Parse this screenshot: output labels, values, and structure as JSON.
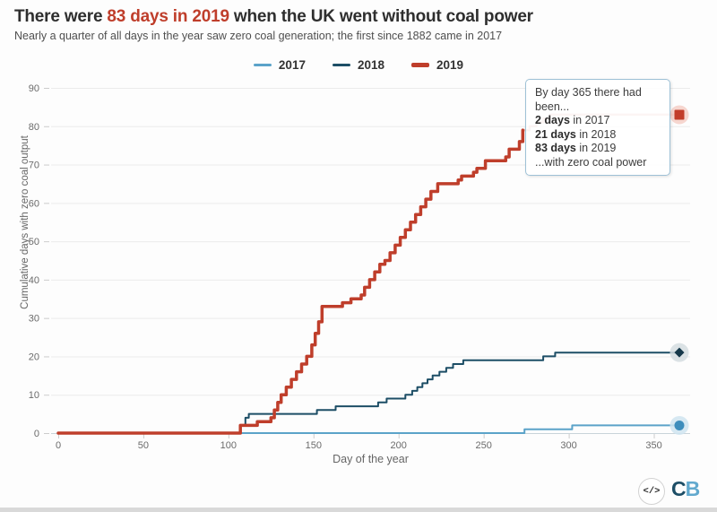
{
  "header": {
    "title_prefix": "There were ",
    "title_highlight": "83 days in 2019",
    "title_suffix": " when the UK went without coal power",
    "subtitle": "Nearly a quarter of all days in the year saw zero coal generation; the first since 1882 came in 2017"
  },
  "legend": [
    {
      "label": "2017",
      "color": "#5ba3c9",
      "swatch_height": 3
    },
    {
      "label": "2018",
      "color": "#1d4e66",
      "swatch_height": 3
    },
    {
      "label": "2019",
      "color": "#bf3e2b",
      "swatch_height": 5
    }
  ],
  "tooltip": {
    "intro": "By day 365 there had been...",
    "items": [
      {
        "bold": "2 days",
        "rest": " in 2017"
      },
      {
        "bold": "21 days",
        "rest": " in 2018"
      },
      {
        "bold": "83 days",
        "rest": " in 2019"
      }
    ],
    "outro": "...with zero coal power"
  },
  "chart_data": {
    "type": "line",
    "step": true,
    "xlabel": "Day of the year",
    "ylabel": "Cumulative days with zero coal output",
    "xlim": [
      0,
      365
    ],
    "ylim": [
      0,
      90
    ],
    "xticks": [
      0,
      50,
      100,
      150,
      200,
      250,
      300,
      350
    ],
    "yticks": [
      0,
      10,
      20,
      30,
      40,
      50,
      60,
      70,
      80,
      90
    ],
    "grid": "horizontal",
    "legend_position": "top",
    "final_values": {
      "2017": 2,
      "2018": 21,
      "2019": 83
    },
    "series": [
      {
        "name": "2017",
        "color": "#5ba3c9",
        "width": 2,
        "opacity": 1,
        "points": [
          [
            0,
            0
          ],
          [
            274,
            1
          ],
          [
            302,
            2
          ],
          [
            365,
            2
          ]
        ]
      },
      {
        "name": "2018",
        "color": "#1d4e66",
        "width": 2,
        "opacity": 1,
        "points": [
          [
            0,
            0
          ],
          [
            107,
            2
          ],
          [
            110,
            4
          ],
          [
            112,
            5
          ],
          [
            152,
            6
          ],
          [
            163,
            7
          ],
          [
            188,
            8
          ],
          [
            193,
            9
          ],
          [
            204,
            10
          ],
          [
            208,
            11
          ],
          [
            211,
            12
          ],
          [
            214,
            13
          ],
          [
            217,
            14
          ],
          [
            220,
            15
          ],
          [
            224,
            16
          ],
          [
            228,
            17
          ],
          [
            232,
            18
          ],
          [
            238,
            19
          ],
          [
            285,
            20
          ],
          [
            292,
            21
          ],
          [
            365,
            21
          ]
        ]
      },
      {
        "name": "2019",
        "color": "#bf3e2b",
        "width": 3.5,
        "opacity": 1,
        "points": [
          [
            0,
            0
          ],
          [
            107,
            2
          ],
          [
            117,
            3
          ],
          [
            125,
            4
          ],
          [
            127,
            6
          ],
          [
            129,
            8
          ],
          [
            131,
            10
          ],
          [
            134,
            12
          ],
          [
            137,
            14
          ],
          [
            140,
            16
          ],
          [
            143,
            18
          ],
          [
            146,
            20
          ],
          [
            149,
            23
          ],
          [
            151,
            26
          ],
          [
            153,
            29
          ],
          [
            155,
            33
          ],
          [
            167,
            34
          ],
          [
            172,
            35
          ],
          [
            178,
            36
          ],
          [
            180,
            38
          ],
          [
            183,
            40
          ],
          [
            186,
            42
          ],
          [
            189,
            44
          ],
          [
            192,
            45
          ],
          [
            195,
            47
          ],
          [
            198,
            49
          ],
          [
            201,
            51
          ],
          [
            204,
            53
          ],
          [
            207,
            55
          ],
          [
            210,
            57
          ],
          [
            213,
            59
          ],
          [
            216,
            61
          ],
          [
            219,
            63
          ],
          [
            223,
            65
          ],
          [
            235,
            66
          ],
          [
            237,
            67
          ],
          [
            244,
            68
          ],
          [
            246,
            69
          ],
          [
            251,
            71
          ],
          [
            263,
            72
          ],
          [
            265,
            74
          ],
          [
            271,
            76
          ],
          [
            273,
            79
          ]
        ]
      },
      {
        "name": "2019-continuation",
        "color": "#bf3e2b",
        "width": 2.5,
        "opacity": 0.32,
        "points": [
          [
            273,
            79
          ],
          [
            277,
            80
          ],
          [
            281,
            81
          ],
          [
            285,
            82
          ],
          [
            289,
            83
          ],
          [
            365,
            83
          ]
        ]
      }
    ],
    "end_markers": [
      {
        "series": "2017",
        "day": 365,
        "value": 2,
        "shape": "circle",
        "color": "#3d8dbc",
        "halo": "#cfe4f0"
      },
      {
        "series": "2018",
        "day": 365,
        "value": 21,
        "shape": "diamond",
        "color": "#16384a",
        "halo": "#d5dde1"
      },
      {
        "series": "2019",
        "day": 365,
        "value": 83,
        "shape": "square",
        "color": "#c23d2a",
        "halo": "#f5cfc7"
      }
    ]
  },
  "footer": {
    "embed_label": "</>",
    "logo_c": "C",
    "logo_b": "B"
  }
}
